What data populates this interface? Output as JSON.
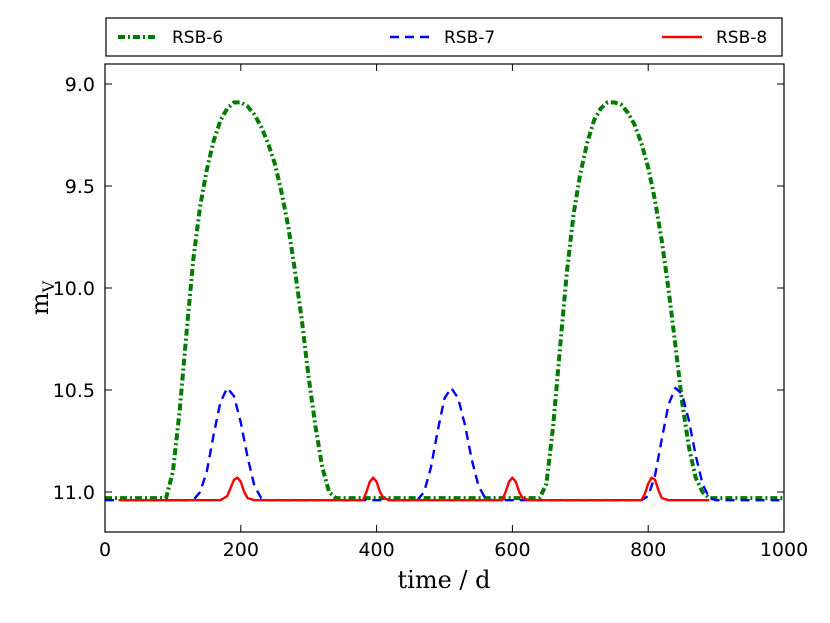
{
  "chart_data": {
    "type": "line",
    "xlabel": "time / d",
    "ylabel_main": "m",
    "ylabel_sub": "V",
    "xlim": [
      0,
      1000
    ],
    "ylim": [
      9.0,
      11.2
    ],
    "y_inverted": true,
    "x_ticks": [
      0,
      200,
      400,
      600,
      800,
      1000
    ],
    "x_tick_labels": [
      "0",
      "200",
      "400",
      "600",
      "800",
      "1000"
    ],
    "y_ticks": [
      9.0,
      9.5,
      10.0,
      10.5,
      11.0
    ],
    "y_tick_labels": [
      "9.0",
      "9.5",
      "10.0",
      "10.5",
      "11.0"
    ],
    "grid": false,
    "legend_position": "top, above plot",
    "series": [
      {
        "name": "RSB-6",
        "color": "#007a00",
        "style": "dashdot",
        "x": [
          0,
          90,
          100,
          110,
          120,
          130,
          140,
          150,
          160,
          170,
          180,
          190,
          200,
          210,
          220,
          230,
          240,
          250,
          260,
          270,
          280,
          290,
          300,
          310,
          320,
          330,
          340,
          350,
          400,
          500,
          600,
          640,
          650,
          660,
          670,
          680,
          690,
          700,
          710,
          720,
          730,
          740,
          750,
          760,
          770,
          780,
          790,
          800,
          810,
          820,
          830,
          840,
          850,
          860,
          870,
          880,
          890,
          900,
          1000
        ],
        "y": [
          11.03,
          11.03,
          10.9,
          10.6,
          10.22,
          9.86,
          9.6,
          9.42,
          9.28,
          9.18,
          9.12,
          9.09,
          9.09,
          9.11,
          9.15,
          9.21,
          9.29,
          9.39,
          9.53,
          9.7,
          9.92,
          10.16,
          10.44,
          10.68,
          10.88,
          11.0,
          11.03,
          11.03,
          11.03,
          11.03,
          11.03,
          11.03,
          10.96,
          10.68,
          10.3,
          9.93,
          9.64,
          9.44,
          9.29,
          9.18,
          9.12,
          9.09,
          9.09,
          9.1,
          9.14,
          9.2,
          9.29,
          9.41,
          9.57,
          9.77,
          10.01,
          10.28,
          10.56,
          10.78,
          10.93,
          11.0,
          11.03,
          11.03,
          11.03
        ]
      },
      {
        "name": "RSB-7",
        "color": "#0000ff",
        "style": "dashed",
        "x": [
          0,
          130,
          140,
          150,
          160,
          170,
          180,
          190,
          200,
          210,
          220,
          230,
          240,
          460,
          470,
          480,
          490,
          500,
          510,
          520,
          530,
          540,
          550,
          560,
          570,
          580,
          790,
          800,
          810,
          820,
          830,
          840,
          850,
          860,
          870,
          880,
          890,
          900,
          1000
        ],
        "y": [
          11.04,
          11.04,
          11.0,
          10.9,
          10.72,
          10.56,
          10.49,
          10.53,
          10.66,
          10.83,
          10.97,
          11.03,
          11.04,
          11.04,
          11.0,
          10.88,
          10.7,
          10.54,
          10.49,
          10.54,
          10.67,
          10.84,
          10.97,
          11.03,
          11.04,
          11.04,
          11.04,
          11.02,
          10.92,
          10.74,
          10.57,
          10.49,
          10.52,
          10.65,
          10.82,
          10.96,
          11.03,
          11.04,
          11.04
        ]
      },
      {
        "name": "RSB-8",
        "color": "#ff0000",
        "style": "solid",
        "x": [
          20,
          170,
          180,
          185,
          190,
          195,
          200,
          205,
          210,
          220,
          380,
          385,
          390,
          395,
          400,
          405,
          410,
          420,
          585,
          590,
          595,
          600,
          605,
          610,
          615,
          625,
          790,
          795,
          800,
          805,
          810,
          815,
          820,
          830,
          890
        ],
        "y": [
          11.04,
          11.04,
          11.02,
          10.98,
          10.94,
          10.93,
          10.95,
          11.0,
          11.03,
          11.04,
          11.04,
          11.0,
          10.95,
          10.93,
          10.95,
          11.0,
          11.03,
          11.04,
          11.04,
          11.0,
          10.95,
          10.93,
          10.95,
          11.0,
          11.03,
          11.04,
          11.04,
          11.01,
          10.96,
          10.93,
          10.94,
          10.99,
          11.03,
          11.04,
          11.04
        ]
      }
    ]
  }
}
